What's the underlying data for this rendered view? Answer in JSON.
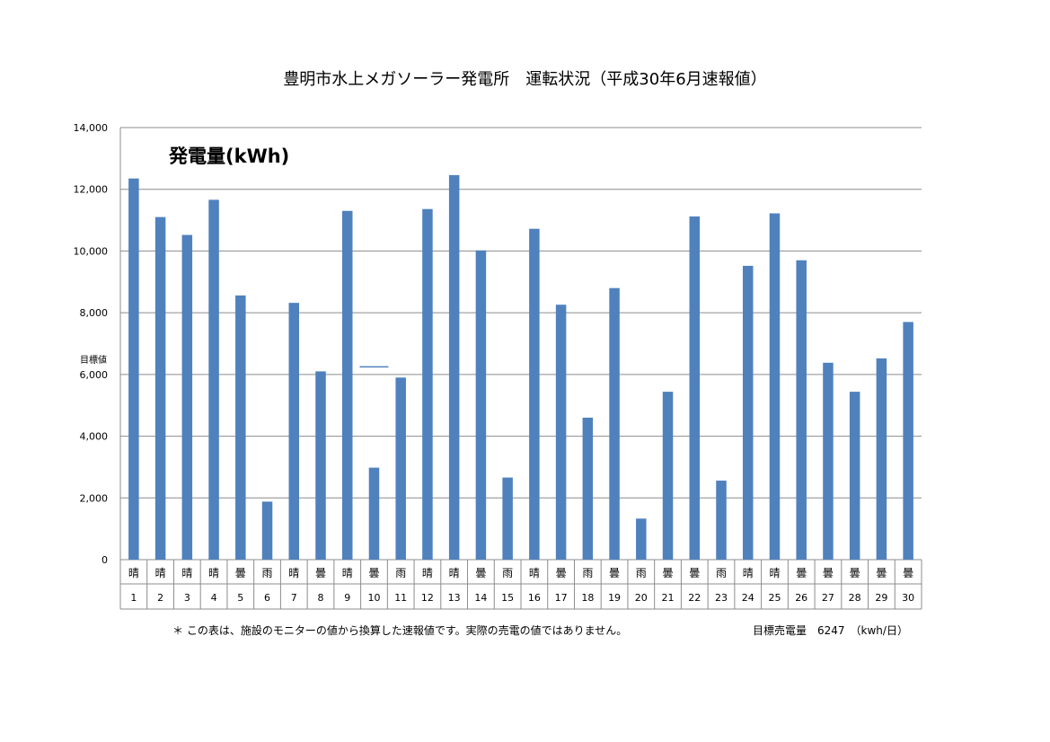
{
  "chart_data": {
    "type": "bar",
    "title": "豊明市水上メガソーラー発電所　運転状況（平成30年6月速報値）",
    "ylabel": "発電量(kWh)",
    "ylim": [
      0,
      14000
    ],
    "yticks": [
      0,
      2000,
      4000,
      6000,
      8000,
      10000,
      12000,
      14000
    ],
    "ytick_labels": [
      "0",
      "2,000",
      "4,000",
      "6,000",
      "8,000",
      "10,000",
      "12,000",
      "14,000"
    ],
    "grid": true,
    "categories": [
      "1",
      "2",
      "3",
      "4",
      "5",
      "6",
      "7",
      "8",
      "9",
      "10",
      "11",
      "12",
      "13",
      "14",
      "15",
      "16",
      "17",
      "18",
      "19",
      "20",
      "21",
      "22",
      "23",
      "24",
      "25",
      "26",
      "27",
      "28",
      "29",
      "30"
    ],
    "weather": [
      "晴",
      "晴",
      "晴",
      "晴",
      "曇",
      "雨",
      "晴",
      "曇",
      "晴",
      "曇",
      "雨",
      "晴",
      "晴",
      "曇",
      "雨",
      "晴",
      "曇",
      "雨",
      "曇",
      "雨",
      "曇",
      "曇",
      "雨",
      "晴",
      "晴",
      "曇",
      "曇",
      "曇",
      "曇",
      "曇"
    ],
    "values": [
      12350,
      11100,
      10520,
      11660,
      8560,
      1880,
      8320,
      6100,
      11300,
      2980,
      5900,
      11360,
      12460,
      10020,
      2660,
      10720,
      8260,
      4600,
      8800,
      1330,
      5440,
      11120,
      2560,
      9520,
      11220,
      9700,
      6380,
      5440,
      6520,
      7700
    ],
    "target": {
      "label": "目標値",
      "value": 6247
    },
    "color": "#4f81bd"
  },
  "footnote": "＊ この表は、施設のモニターの値から換算した速報値です。実際の売電の値ではありません。",
  "target_note": "目標売電量　6247　（kwh/日）"
}
